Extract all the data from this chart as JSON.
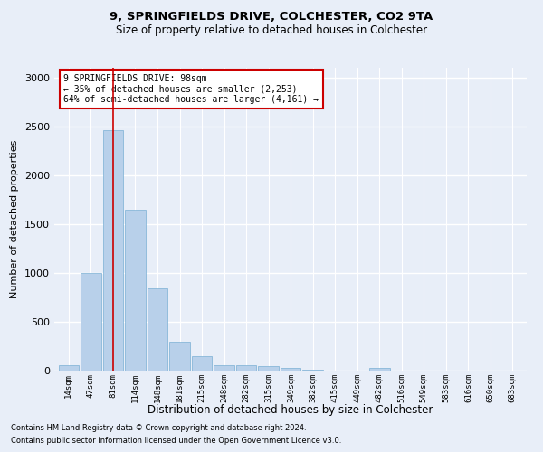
{
  "title1": "9, SPRINGFIELDS DRIVE, COLCHESTER, CO2 9TA",
  "title2": "Size of property relative to detached houses in Colchester",
  "xlabel": "Distribution of detached houses by size in Colchester",
  "ylabel": "Number of detached properties",
  "footer1": "Contains HM Land Registry data © Crown copyright and database right 2024.",
  "footer2": "Contains public sector information licensed under the Open Government Licence v3.0.",
  "annotation_title": "9 SPRINGFIELDS DRIVE: 98sqm",
  "annotation_line1": "← 35% of detached houses are smaller (2,253)",
  "annotation_line2": "64% of semi-detached houses are larger (4,161) →",
  "bin_labels": [
    "14sqm",
    "47sqm",
    "81sqm",
    "114sqm",
    "148sqm",
    "181sqm",
    "215sqm",
    "248sqm",
    "282sqm",
    "315sqm",
    "349sqm",
    "382sqm",
    "415sqm",
    "449sqm",
    "482sqm",
    "516sqm",
    "549sqm",
    "583sqm",
    "616sqm",
    "650sqm",
    "683sqm"
  ],
  "bin_edges": [
    14,
    47,
    81,
    114,
    148,
    181,
    215,
    248,
    282,
    315,
    349,
    382,
    415,
    449,
    482,
    516,
    549,
    583,
    616,
    650,
    683,
    716
  ],
  "bar_values": [
    60,
    1000,
    2460,
    1650,
    840,
    300,
    145,
    60,
    55,
    50,
    25,
    5,
    0,
    0,
    30,
    0,
    0,
    0,
    0,
    0,
    0
  ],
  "bar_color": "#b8d0ea",
  "bar_edgecolor": "#7aafd4",
  "vline_color": "#cc0000",
  "vline_x": 98,
  "ylim": [
    0,
    3100
  ],
  "yticks": [
    0,
    500,
    1000,
    1500,
    2000,
    2500,
    3000
  ],
  "bg_color": "#e8eef8",
  "grid_color": "#ffffff",
  "annotation_box_facecolor": "#ffffff",
  "annotation_box_edgecolor": "#cc0000"
}
